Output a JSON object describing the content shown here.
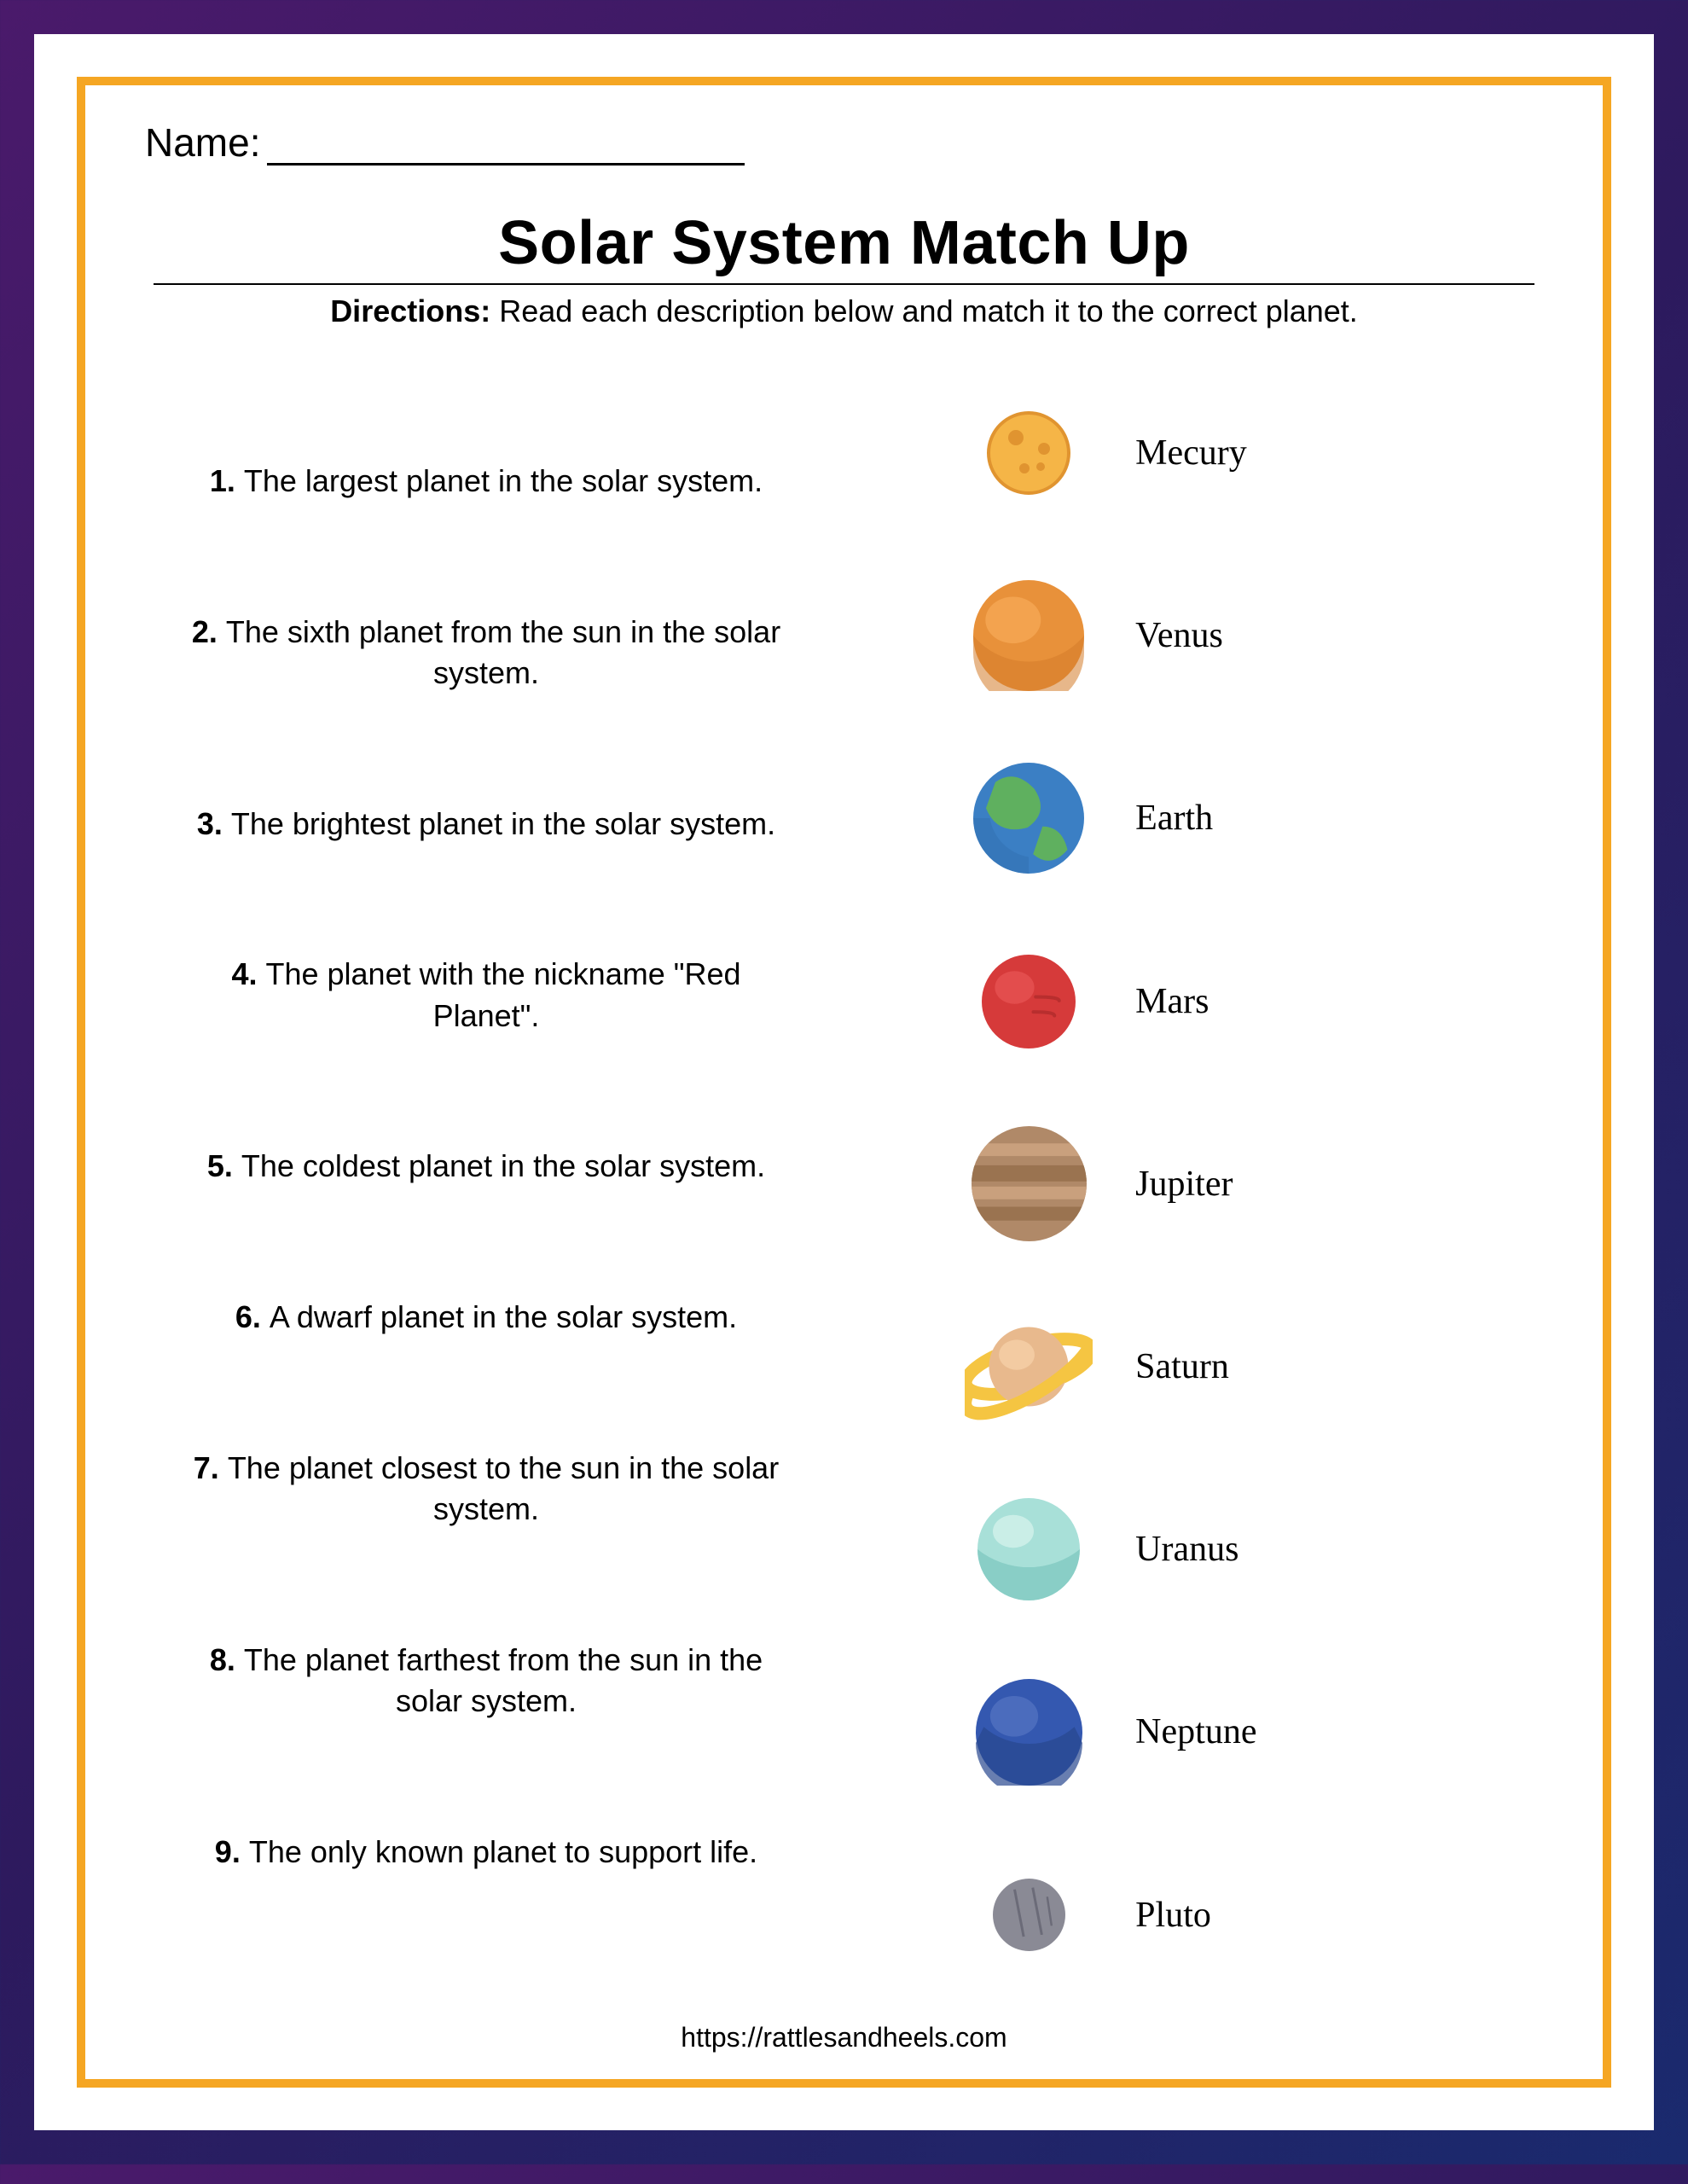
{
  "name_label": "Name:",
  "title": "Solar System Match Up",
  "directions_label": "Directions:",
  "directions_text": " Read each description below and match it to the correct planet.",
  "clues": [
    {
      "num": "1.",
      "text": "The largest planet in the solar system."
    },
    {
      "num": "2.",
      "text": "The sixth planet from the sun in the solar  system."
    },
    {
      "num": "3.",
      "text": "The brightest planet in the solar system."
    },
    {
      "num": "4.",
      "text": "The planet with the nickname \"Red Planet\"."
    },
    {
      "num": "5.",
      "text": "The coldest planet in the solar system."
    },
    {
      "num": "6.",
      "text": "A dwarf planet in the solar system."
    },
    {
      "num": "7.",
      "text": "The planet closest to the sun in the solar system."
    },
    {
      "num": "8.",
      "text": "The planet farthest from the sun in the solar system."
    },
    {
      "num": "9.",
      "text": "The only known planet to support life."
    }
  ],
  "planets": [
    {
      "name": "Mecury",
      "icon": "mercury",
      "size": 100
    },
    {
      "name": "Venus",
      "icon": "venus",
      "size": 130
    },
    {
      "name": "Earth",
      "icon": "earth",
      "size": 130
    },
    {
      "name": "Mars",
      "icon": "mars",
      "size": 110
    },
    {
      "name": "Jupiter",
      "icon": "jupiter",
      "size": 135
    },
    {
      "name": "Saturn",
      "icon": "saturn",
      "size": 160
    },
    {
      "name": "Uranus",
      "icon": "uranus",
      "size": 120
    },
    {
      "name": "Neptune",
      "icon": "neptune",
      "size": 125
    },
    {
      "name": "Pluto",
      "icon": "pluto",
      "size": 85
    }
  ],
  "footer_url": "https://rattlesandheels.com",
  "colors": {
    "border": "#f5a623",
    "bg_gradient": [
      "#4a1a6b",
      "#2d1a5e",
      "#1a2a6e"
    ],
    "mercury": {
      "fill": "#f5b547",
      "stroke": "#e09430",
      "crater": "#e09430"
    },
    "venus": {
      "fill": "#e8913a",
      "shade": "#d47c2a",
      "light": "#f5a855"
    },
    "earth": {
      "water": "#3b7fc4",
      "land": "#5fb05f",
      "shade": "#2d6aa8"
    },
    "mars": {
      "fill": "#d63a3a",
      "shade": "#b82e2e"
    },
    "jupiter": {
      "fill": "#b08968",
      "band1": "#9a7350",
      "band2": "#c9a07d"
    },
    "saturn": {
      "fill": "#e8b98d",
      "shade": "#d4a070",
      "ring": "#f5c542"
    },
    "uranus": {
      "fill": "#a8e0d8",
      "shade": "#7fc8c0"
    },
    "neptune": {
      "fill": "#3458b0",
      "shade": "#28478f",
      "light": "#5070c0"
    },
    "pluto": {
      "fill": "#8a8a95",
      "shade": "#6b6b78"
    }
  }
}
